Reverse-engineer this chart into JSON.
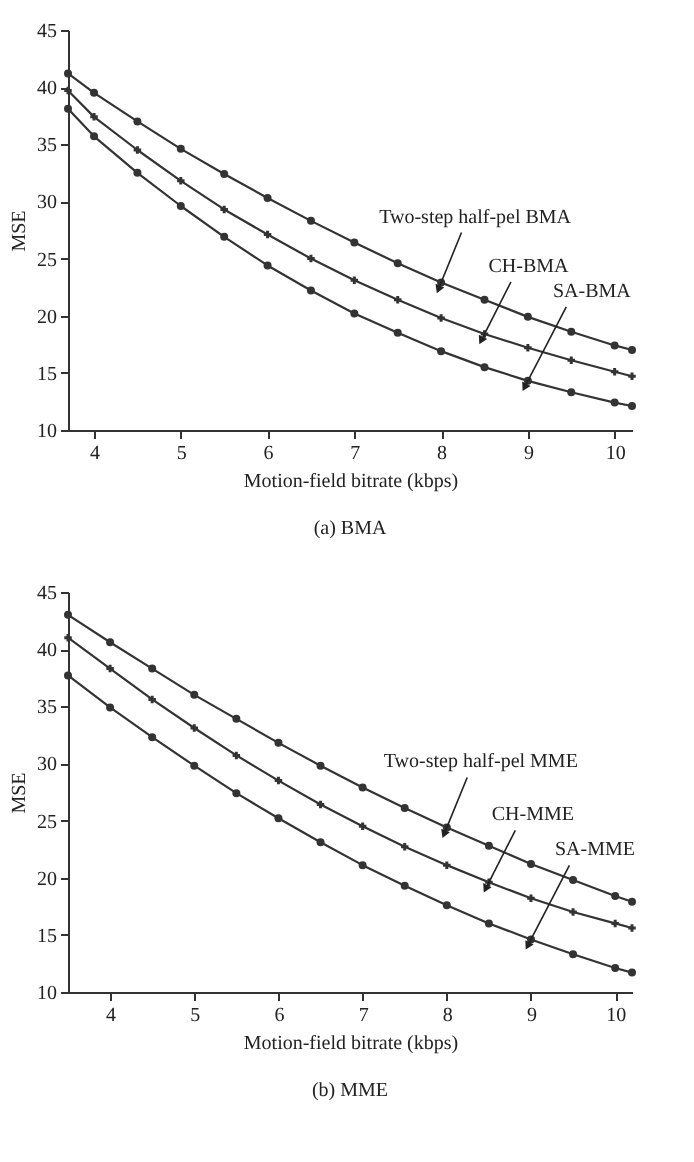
{
  "chart_data": [
    {
      "type": "line",
      "title": "(a) BMA",
      "xlabel": "Motion-field bitrate (kbps)",
      "ylabel": "MSE",
      "x": [
        3.7,
        4,
        4.5,
        5,
        5.5,
        6,
        6.5,
        7,
        7.5,
        8,
        8.5,
        9,
        9.5,
        10,
        10.2
      ],
      "xlim": [
        3.7,
        10.2
      ],
      "xticks": [
        4,
        5,
        6,
        7,
        8,
        9,
        10
      ],
      "ylim": [
        10,
        45
      ],
      "yticks": [
        10,
        15,
        20,
        25,
        30,
        35,
        40,
        45
      ],
      "grid": false,
      "line_style": "solid",
      "series": [
        {
          "name": "Two-step half-pel BMA",
          "color": "#333333",
          "marker": "circle",
          "values": [
            41.2,
            39.5,
            37.0,
            34.6,
            32.4,
            30.3,
            28.3,
            26.4,
            24.6,
            22.9,
            21.4,
            19.9,
            18.6,
            17.4,
            17.0
          ]
        },
        {
          "name": "CH-BMA",
          "color": "#333333",
          "marker": "cross",
          "values": [
            39.7,
            37.4,
            34.5,
            31.8,
            29.3,
            27.1,
            25.0,
            23.1,
            21.4,
            19.8,
            18.4,
            17.2,
            16.1,
            15.1,
            14.7
          ]
        },
        {
          "name": "SA-BMA",
          "color": "#333333",
          "marker": "circle",
          "values": [
            38.1,
            35.7,
            32.5,
            29.6,
            26.9,
            24.4,
            22.2,
            20.2,
            18.5,
            16.9,
            15.5,
            14.3,
            13.3,
            12.4,
            12.1
          ]
        }
      ]
    },
    {
      "type": "line",
      "title": "(b) MME",
      "xlabel": "Motion-field bitrate (kbps)",
      "ylabel": "MSE",
      "x": [
        3.5,
        4,
        4.5,
        5,
        5.5,
        6,
        6.5,
        7,
        7.5,
        8,
        8.5,
        9,
        9.5,
        10,
        10.2
      ],
      "xlim": [
        3.5,
        10.2
      ],
      "xticks": [
        4,
        5,
        6,
        7,
        8,
        9,
        10
      ],
      "ylim": [
        10,
        45
      ],
      "yticks": [
        10,
        15,
        20,
        25,
        30,
        35,
        40,
        45
      ],
      "grid": false,
      "line_style": "solid",
      "series": [
        {
          "name": "Two-step half-pel MME",
          "color": "#333333",
          "marker": "circle",
          "values": [
            43.0,
            40.6,
            38.3,
            36.0,
            33.9,
            31.8,
            29.8,
            27.9,
            26.1,
            24.4,
            22.8,
            21.2,
            19.8,
            18.4,
            17.9
          ]
        },
        {
          "name": "CH-MME",
          "color": "#333333",
          "marker": "cross",
          "values": [
            41.0,
            38.3,
            35.6,
            33.1,
            30.7,
            28.5,
            26.4,
            24.5,
            22.7,
            21.1,
            19.6,
            18.2,
            17.0,
            16.0,
            15.6
          ]
        },
        {
          "name": "SA-MME",
          "color": "#333333",
          "marker": "circle",
          "values": [
            37.7,
            34.9,
            32.3,
            29.8,
            27.4,
            25.2,
            23.1,
            21.1,
            19.3,
            17.6,
            16.0,
            14.6,
            13.3,
            12.1,
            11.7
          ]
        }
      ]
    }
  ]
}
